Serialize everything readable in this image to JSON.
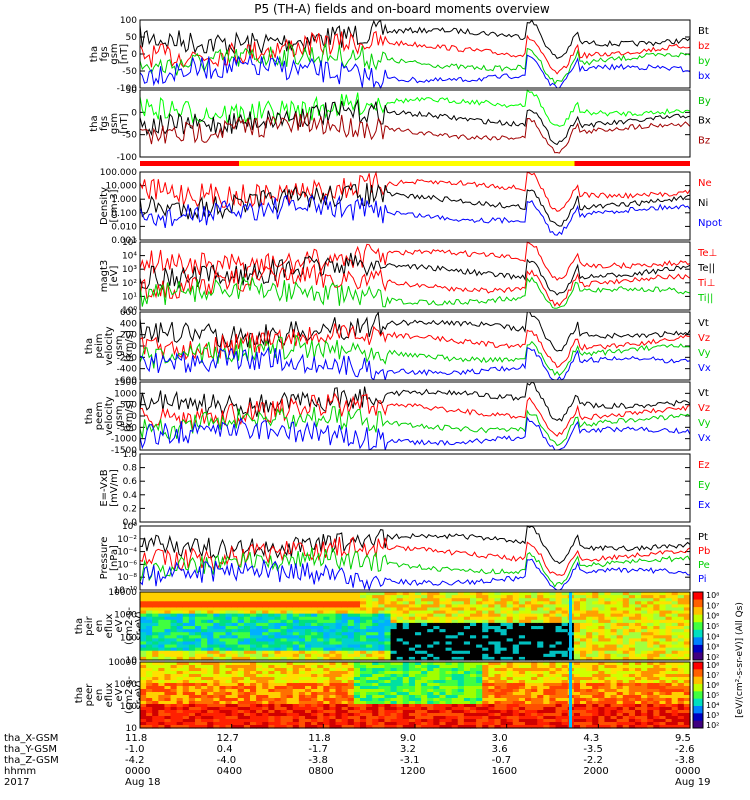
{
  "title": "P5 (TH-A) fields and on-board moments overview",
  "colors": {
    "black": "#000000",
    "red": "#ff0000",
    "green": "#00d000",
    "blue": "#0000ff",
    "darkred": "#a00000",
    "yellow": "#ffff00",
    "ltgreen": "#00ff00"
  },
  "chart_data": [
    {
      "type": "line",
      "panel": "fgs",
      "ylabel": [
        "tha",
        "fgs",
        "gsm",
        "[nT]"
      ],
      "yticks": [
        "100",
        "50",
        "0",
        "-50",
        "-100"
      ],
      "series": [
        {
          "name": "Bt",
          "color": "black"
        },
        {
          "name": "bz",
          "color": "red"
        },
        {
          "name": "by",
          "color": "green"
        },
        {
          "name": "bx",
          "color": "blue"
        }
      ]
    },
    {
      "type": "line",
      "panel": "fgs_gse",
      "ylabel": [
        "tha",
        "fgs",
        "gsm",
        "[nT]"
      ],
      "yticks": [
        "50",
        "0",
        "-50",
        "-100"
      ],
      "series": [
        {
          "name": "By",
          "color": "ltgreen"
        },
        {
          "name": "Bx",
          "color": "black"
        },
        {
          "name": "Bz",
          "color": "darkred"
        }
      ]
    },
    {
      "type": "line",
      "panel": "density",
      "ylabel": [
        "Density",
        "[cm-3]"
      ],
      "yticks": [
        "100.000",
        "10.000",
        "1.000",
        "0.100",
        "0.010",
        "0.001"
      ],
      "series": [
        {
          "name": "Ne",
          "color": "red"
        },
        {
          "name": "Ni",
          "color": "black"
        },
        {
          "name": "Npot",
          "color": "blue"
        }
      ]
    },
    {
      "type": "line",
      "panel": "temperature",
      "ylabel": [
        "magt3",
        "[eV]"
      ],
      "yticks": [
        "10⁵",
        "10⁴",
        "10³",
        "10²",
        "10¹",
        "10⁰"
      ],
      "series": [
        {
          "name": "Te⊥",
          "color": "red"
        },
        {
          "name": "Te||",
          "color": "black"
        },
        {
          "name": "Ti⊥",
          "color": "red"
        },
        {
          "name": "Ti||",
          "color": "green"
        }
      ]
    },
    {
      "type": "line",
      "panel": "ion_velocity",
      "ylabel": [
        "tha",
        "peim",
        "velocity",
        "gsm",
        "[km/s]"
      ],
      "yticks": [
        "600",
        "400",
        "200",
        "0",
        "-200",
        "-400",
        "-600"
      ],
      "series": [
        {
          "name": "Vt",
          "color": "black"
        },
        {
          "name": "Vz",
          "color": "red"
        },
        {
          "name": "Vy",
          "color": "green"
        },
        {
          "name": "Vx",
          "color": "blue"
        }
      ]
    },
    {
      "type": "line",
      "panel": "electron_velocity",
      "ylabel": [
        "tha",
        "peem",
        "velocity",
        "gsm",
        "[km/s]"
      ],
      "yticks": [
        "1500",
        "1000",
        "500",
        "0",
        "-500",
        "-1000",
        "-1500"
      ],
      "series": [
        {
          "name": "Vt",
          "color": "black"
        },
        {
          "name": "Vz",
          "color": "red"
        },
        {
          "name": "Vy",
          "color": "green"
        },
        {
          "name": "Vx",
          "color": "blue"
        }
      ]
    },
    {
      "type": "line",
      "panel": "efield",
      "ylabel": [
        "E=-VxB",
        "[mV/m]"
      ],
      "yticks": [
        "1.0",
        "0.8",
        "0.6",
        "0.4",
        "0.2",
        "0.0"
      ],
      "series": [
        {
          "name": "Ez",
          "color": "red"
        },
        {
          "name": "Ey",
          "color": "green"
        },
        {
          "name": "Ex",
          "color": "blue"
        }
      ]
    },
    {
      "type": "line",
      "panel": "pressure",
      "ylabel": [
        "Pressure",
        "[nPa]"
      ],
      "yticks": [
        "10⁰",
        "10⁻²",
        "10⁻⁴",
        "10⁻⁶",
        "10⁻⁸",
        "10⁻¹⁰"
      ],
      "series": [
        {
          "name": "Pt",
          "color": "black"
        },
        {
          "name": "Pb",
          "color": "red"
        },
        {
          "name": "Pe",
          "color": "green"
        },
        {
          "name": "Pi",
          "color": "blue"
        }
      ]
    },
    {
      "type": "heatmap",
      "panel": "ion_spectrogram",
      "ylabel": [
        "tha",
        "peir",
        "en",
        "eflux",
        "eV",
        "(cm2-s-",
        "sr-eV)"
      ],
      "yticks": [
        "10000",
        "1000",
        "100",
        "10"
      ]
    },
    {
      "type": "heatmap",
      "panel": "electron_spectrogram",
      "ylabel": [
        "tha",
        "peer",
        "en",
        "eflux",
        "eV",
        "(cm2-s-",
        "sr-eV)"
      ],
      "yticks": [
        "10000",
        "1000",
        "100",
        "10"
      ]
    }
  ],
  "colorbar": {
    "label": "[eV/(cm²-s-sr-eV)] (All Qs)",
    "ion_ticks": [
      "10⁸",
      "10⁷",
      "10⁶",
      "10⁵",
      "10⁴",
      "10³",
      "10²"
    ],
    "electron_ticks": [
      "10⁸",
      "10⁷",
      "10⁶",
      "10⁵",
      "10⁴",
      "10³",
      "10²"
    ]
  },
  "xaxis": {
    "row_labels": [
      "tha_X-GSM",
      "tha_Y-GSM",
      "tha_Z-GSM",
      "hhmm",
      "2017"
    ],
    "columns": [
      {
        "x": "11.8",
        "y": "-1.0",
        "z": "-4.2",
        "hhmm": "0000",
        "date": "Aug 18"
      },
      {
        "x": "12.7",
        "y": "0.4",
        "z": "-4.0",
        "hhmm": "0400",
        "date": ""
      },
      {
        "x": "11.8",
        "y": "-1.7",
        "z": "-3.8",
        "hhmm": "0800",
        "date": ""
      },
      {
        "x": "9.0",
        "y": "3.2",
        "z": "-3.1",
        "hhmm": "1200",
        "date": ""
      },
      {
        "x": "3.0",
        "y": "3.6",
        "z": "-0.7",
        "hhmm": "1600",
        "date": ""
      },
      {
        "x": "4.3",
        "y": "-3.5",
        "z": "-2.2",
        "hhmm": "2000",
        "date": ""
      },
      {
        "x": "9.5",
        "y": "-2.6",
        "z": "-3.8",
        "hhmm": "0000",
        "date": "Aug 19"
      }
    ]
  },
  "mode_bar": [
    {
      "start": 0.0,
      "end": 0.18,
      "color": "red"
    },
    {
      "start": 0.18,
      "end": 0.79,
      "color": "yellow"
    },
    {
      "start": 0.79,
      "end": 1.0,
      "color": "red"
    }
  ]
}
